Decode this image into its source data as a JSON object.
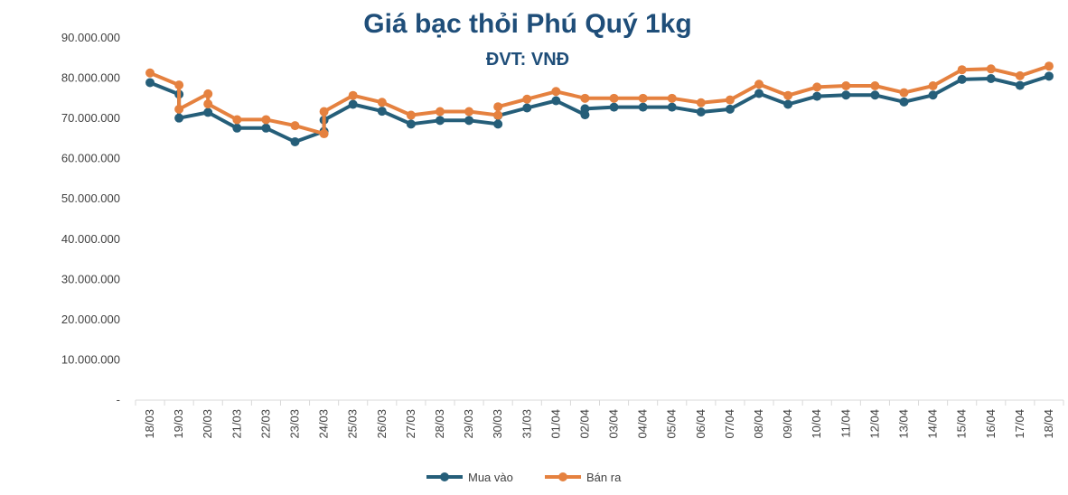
{
  "chart_data": {
    "type": "line",
    "title": "Giá bạc thỏi Phú Quý 1kg",
    "subtitle": "ĐVT: VNĐ",
    "xlabel": "",
    "ylabel": "",
    "ylim": [
      0,
      90000000
    ],
    "yticks": [
      {
        "value": 0,
        "label": "-"
      },
      {
        "value": 10000000,
        "label": "10.000.000"
      },
      {
        "value": 20000000,
        "label": "20.000.000"
      },
      {
        "value": 30000000,
        "label": "30.000.000"
      },
      {
        "value": 40000000,
        "label": "40.000.000"
      },
      {
        "value": 50000000,
        "label": "50.000.000"
      },
      {
        "value": 60000000,
        "label": "60.000.000"
      },
      {
        "value": 70000000,
        "label": "70.000.000"
      },
      {
        "value": 80000000,
        "label": "80.000.000"
      },
      {
        "value": 90000000,
        "label": "90.000.000"
      }
    ],
    "categories": [
      "18/03",
      "19/03",
      "20/03",
      "21/03",
      "22/03",
      "23/03",
      "24/03",
      "25/03",
      "26/03",
      "27/03",
      "28/03",
      "29/03",
      "30/03",
      "31/03",
      "01/04",
      "02/04",
      "03/04",
      "04/04",
      "05/04",
      "06/04",
      "07/04",
      "08/04",
      "09/04",
      "10/04",
      "11/04",
      "12/04",
      "13/04",
      "14/04",
      "15/04",
      "16/04",
      "17/04",
      "18/04"
    ],
    "series": [
      {
        "name": "Mua vào",
        "color": "#255e79",
        "points": [
          {
            "slot": 0,
            "value": 78900000
          },
          {
            "slot": 1,
            "value": 76000000
          },
          {
            "slot": 1,
            "value": 70100000
          },
          {
            "slot": 2,
            "value": 71500000
          },
          {
            "slot": 3,
            "value": 67600000
          },
          {
            "slot": 4,
            "value": 67600000
          },
          {
            "slot": 5,
            "value": 64200000
          },
          {
            "slot": 6,
            "value": 66800000
          },
          {
            "slot": 6,
            "value": 69600000
          },
          {
            "slot": 7,
            "value": 73500000
          },
          {
            "slot": 8,
            "value": 71800000
          },
          {
            "slot": 9,
            "value": 68600000
          },
          {
            "slot": 10,
            "value": 69500000
          },
          {
            "slot": 11,
            "value": 69500000
          },
          {
            "slot": 12,
            "value": 68600000
          },
          {
            "slot": 12,
            "value": 70700000
          },
          {
            "slot": 13,
            "value": 72600000
          },
          {
            "slot": 14,
            "value": 74400000
          },
          {
            "slot": 15,
            "value": 70900000
          },
          {
            "slot": 15,
            "value": 72400000
          },
          {
            "slot": 16,
            "value": 72800000
          },
          {
            "slot": 17,
            "value": 72800000
          },
          {
            "slot": 18,
            "value": 72800000
          },
          {
            "slot": 19,
            "value": 71600000
          },
          {
            "slot": 20,
            "value": 72300000
          },
          {
            "slot": 21,
            "value": 76200000
          },
          {
            "slot": 22,
            "value": 73500000
          },
          {
            "slot": 23,
            "value": 75500000
          },
          {
            "slot": 24,
            "value": 75800000
          },
          {
            "slot": 25,
            "value": 75800000
          },
          {
            "slot": 26,
            "value": 74100000
          },
          {
            "slot": 27,
            "value": 75800000
          },
          {
            "slot": 28,
            "value": 79700000
          },
          {
            "slot": 29,
            "value": 79900000
          },
          {
            "slot": 30,
            "value": 78200000
          },
          {
            "slot": 31,
            "value": 80500000
          }
        ]
      },
      {
        "name": "Bán ra",
        "color": "#e5813f",
        "points": [
          {
            "slot": 0,
            "value": 81300000
          },
          {
            "slot": 1,
            "value": 78300000
          },
          {
            "slot": 1,
            "value": 72300000
          },
          {
            "slot": 2,
            "value": 76100000
          },
          {
            "slot": 2,
            "value": 73600000
          },
          {
            "slot": 3,
            "value": 69700000
          },
          {
            "slot": 4,
            "value": 69700000
          },
          {
            "slot": 5,
            "value": 68200000
          },
          {
            "slot": 6,
            "value": 66200000
          },
          {
            "slot": 6,
            "value": 71700000
          },
          {
            "slot": 7,
            "value": 75700000
          },
          {
            "slot": 8,
            "value": 74000000
          },
          {
            "slot": 9,
            "value": 70800000
          },
          {
            "slot": 10,
            "value": 71700000
          },
          {
            "slot": 11,
            "value": 71700000
          },
          {
            "slot": 12,
            "value": 70800000
          },
          {
            "slot": 12,
            "value": 72900000
          },
          {
            "slot": 13,
            "value": 74800000
          },
          {
            "slot": 14,
            "value": 76700000
          },
          {
            "slot": 15,
            "value": 75000000
          },
          {
            "slot": 16,
            "value": 75000000
          },
          {
            "slot": 17,
            "value": 75000000
          },
          {
            "slot": 18,
            "value": 75000000
          },
          {
            "slot": 19,
            "value": 73900000
          },
          {
            "slot": 20,
            "value": 74600000
          },
          {
            "slot": 21,
            "value": 78500000
          },
          {
            "slot": 22,
            "value": 75700000
          },
          {
            "slot": 23,
            "value": 77800000
          },
          {
            "slot": 24,
            "value": 78100000
          },
          {
            "slot": 25,
            "value": 78100000
          },
          {
            "slot": 26,
            "value": 76400000
          },
          {
            "slot": 27,
            "value": 78100000
          },
          {
            "slot": 28,
            "value": 82100000
          },
          {
            "slot": 29,
            "value": 82300000
          },
          {
            "slot": 30,
            "value": 80600000
          },
          {
            "slot": 31,
            "value": 83000000
          }
        ]
      }
    ],
    "legend": "bottom-center",
    "grid": false
  }
}
